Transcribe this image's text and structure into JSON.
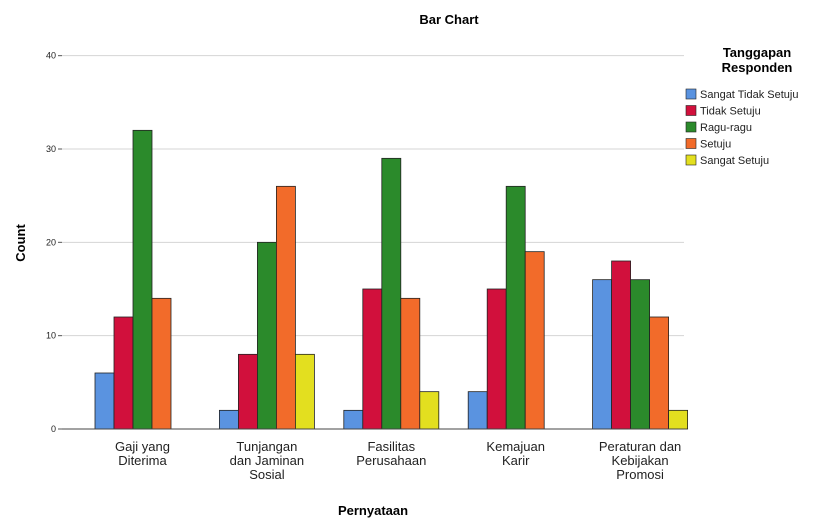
{
  "chart_data": {
    "type": "bar",
    "title": "Bar Chart",
    "xlabel": "Pernyataan",
    "ylabel": "Count",
    "ylim": [
      0,
      42
    ],
    "yticks": [
      0,
      10,
      20,
      30,
      40
    ],
    "grid": true,
    "legend_position": "right",
    "legend_title": [
      "Tanggapan",
      "Responden"
    ],
    "categories": [
      [
        "Gaji yang",
        "Diterima"
      ],
      [
        "Tunjangan",
        "dan Jaminan",
        "Sosial"
      ],
      [
        "Fasilitas",
        "Perusahaan"
      ],
      [
        "Kemajuan",
        "Karir"
      ],
      [
        "Peraturan dan",
        "Kebijakan",
        "Promosi"
      ]
    ],
    "series": [
      {
        "name": "Sangat Tidak Setuju",
        "color": "#5a93e0",
        "values": [
          6,
          2,
          2,
          4,
          16
        ]
      },
      {
        "name": "Tidak Setuju",
        "color": "#d1103c",
        "values": [
          12,
          8,
          15,
          15,
          18
        ]
      },
      {
        "name": "Ragu-ragu",
        "color": "#2b8a2b",
        "values": [
          32,
          20,
          29,
          26,
          16
        ]
      },
      {
        "name": "Setuju",
        "color": "#f26b2a",
        "values": [
          14,
          26,
          14,
          19,
          12
        ]
      },
      {
        "name": "Sangat Setuju",
        "color": "#e3df1f",
        "values": [
          0,
          8,
          4,
          0,
          2
        ]
      }
    ]
  }
}
